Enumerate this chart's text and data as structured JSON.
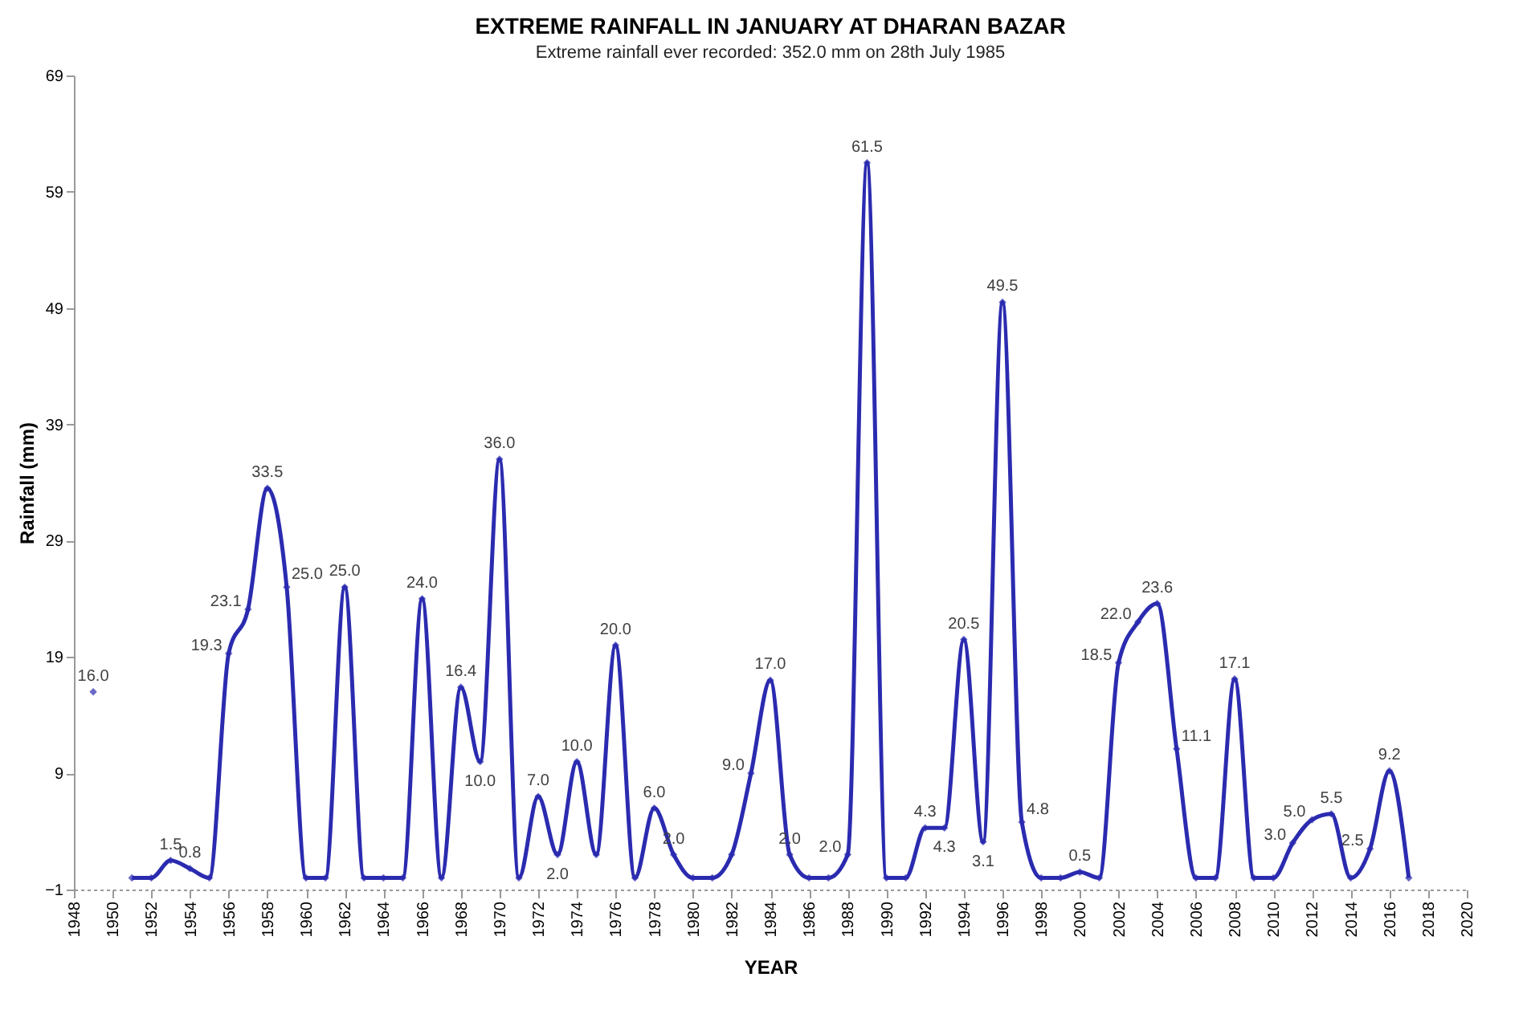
{
  "chart_data": {
    "type": "line",
    "title": "EXTREME RAINFALL IN JANUARY AT DHARAN BAZAR",
    "subtitle": "Extreme rainfall ever recorded: 352.0 mm on 28th July 1985",
    "xlabel": "YEAR",
    "ylabel": "Rainfall (mm)",
    "x": [
      1949,
      1950,
      1951,
      1952,
      1953,
      1954,
      1955,
      1956,
      1957,
      1958,
      1959,
      1960,
      1961,
      1962,
      1963,
      1964,
      1965,
      1966,
      1967,
      1968,
      1969,
      1970,
      1971,
      1972,
      1973,
      1974,
      1975,
      1976,
      1977,
      1978,
      1979,
      1980,
      1981,
      1982,
      1983,
      1984,
      1985,
      1986,
      1987,
      1988,
      1989,
      1990,
      1991,
      1992,
      1993,
      1994,
      1995,
      1996,
      1997,
      1998,
      1999,
      2000,
      2001,
      2002,
      2003,
      2004,
      2005,
      2006,
      2007,
      2008,
      2009,
      2010,
      2011,
      2012,
      2013,
      2014,
      2015,
      2016,
      2017
    ],
    "series": [
      {
        "color": "#2b2bb0",
        "values": [
          16.0,
          null,
          0,
          0,
          1.5,
          0.8,
          0,
          19.3,
          23.1,
          33.5,
          25.0,
          0,
          0,
          25.0,
          0,
          0,
          0,
          24.0,
          0,
          16.4,
          10.0,
          36.0,
          0,
          7.0,
          2.0,
          10.0,
          2.0,
          20.0,
          0,
          6.0,
          2.0,
          0,
          0,
          2.0,
          9.0,
          17.0,
          2.0,
          0,
          0,
          2.0,
          61.5,
          0,
          0,
          4.3,
          4.3,
          20.5,
          3.1,
          49.5,
          4.8,
          0,
          0,
          0.5,
          0,
          18.5,
          22.0,
          23.6,
          11.1,
          0,
          0,
          17.1,
          0,
          0,
          3.0,
          5.0,
          5.5,
          0,
          2.5,
          9.2,
          0
        ],
        "value_labels": [
          "16.0",
          null,
          null,
          null,
          "1.5",
          "0.8",
          null,
          "19.3",
          "23.1",
          "33.5",
          "25.0",
          null,
          null,
          "25.0",
          null,
          null,
          null,
          "24.0",
          null,
          "16.4",
          "10.0",
          "36.0",
          null,
          "7.0",
          "2.0",
          "10.0",
          null,
          "20.0",
          null,
          "6.0",
          "2.0",
          null,
          null,
          null,
          "9.0",
          "17.0",
          "2.0",
          null,
          null,
          "2.0",
          "61.5",
          null,
          null,
          "4.3",
          "4.3",
          "20.5",
          "3.1",
          "49.5",
          "4.8",
          null,
          null,
          "0.5",
          null,
          "18.5",
          "22.0",
          "23.6",
          "11.1",
          null,
          null,
          "17.1",
          null,
          null,
          "3.0",
          "5.0",
          "5.5",
          null,
          "2.5",
          "9.2",
          null
        ]
      }
    ],
    "xlim": [
      1948,
      2020
    ],
    "xticks": [
      1948,
      1950,
      1952,
      1954,
      1956,
      1958,
      1960,
      1962,
      1964,
      1966,
      1968,
      1970,
      1972,
      1974,
      1976,
      1978,
      1980,
      1982,
      1984,
      1986,
      1988,
      1990,
      1992,
      1994,
      1996,
      1998,
      2000,
      2002,
      2004,
      2006,
      2008,
      2010,
      2012,
      2014,
      2016,
      2018,
      2020
    ],
    "ylim": [
      -1,
      69
    ],
    "yticks": [
      -1,
      9,
      19,
      29,
      39,
      49,
      59,
      69
    ],
    "marker": "diamond",
    "grid": false
  }
}
